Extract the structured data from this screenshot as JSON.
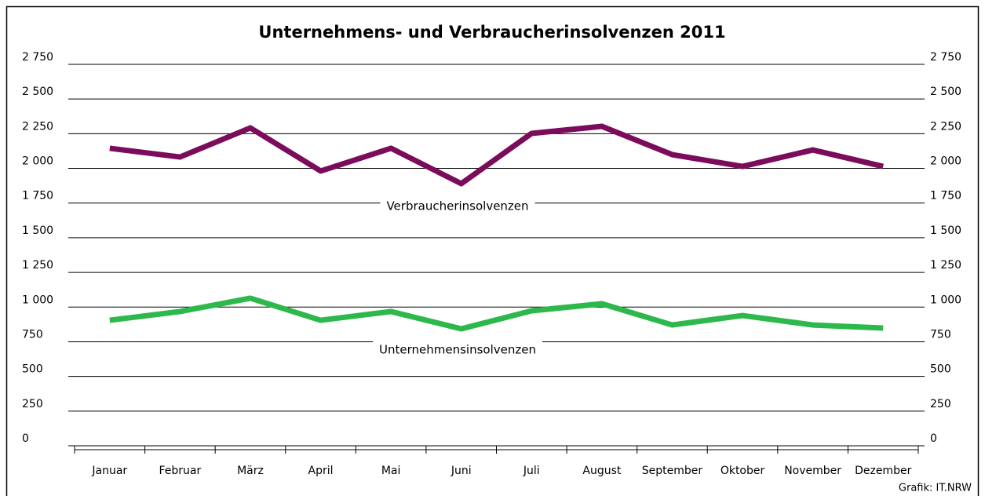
{
  "chart_data": {
    "type": "line",
    "title": "Unternehmens- und Verbraucherinsolvenzen 2011",
    "categories": [
      "Januar",
      "Februar",
      "März",
      "April",
      "Mai",
      "Juni",
      "Juli",
      "August",
      "September",
      "Oktober",
      "November",
      "Dezember"
    ],
    "series": [
      {
        "name": "Verbraucherinsolvenzen",
        "color": "#7b0c5c",
        "values": [
          2145,
          2082,
          2292,
          1981,
          2145,
          1890,
          2252,
          2303,
          2099,
          2014,
          2133,
          2014
        ]
      },
      {
        "name": "Unternehmensinsolvenzen",
        "color": "#2db84b",
        "values": [
          905,
          968,
          1064,
          905,
          968,
          843,
          973,
          1024,
          871,
          939,
          871,
          849
        ]
      }
    ],
    "ylim": [
      0,
      2750
    ],
    "yticks": [
      0,
      250,
      500,
      750,
      {
        "value": 1000,
        "label": "1 000"
      },
      {
        "value": 1250,
        "label": "1 250"
      },
      {
        "value": 1500,
        "label": "1 500"
      },
      {
        "value": 1750,
        "label": "1 750"
      },
      {
        "value": 2000,
        "label": "2 000"
      },
      {
        "value": 2250,
        "label": "2 250"
      },
      {
        "value": 2500,
        "label": "2 500"
      },
      {
        "value": 2750,
        "label": "2 750"
      }
    ],
    "grid": true,
    "source": "Grafik: IT.NRW"
  }
}
